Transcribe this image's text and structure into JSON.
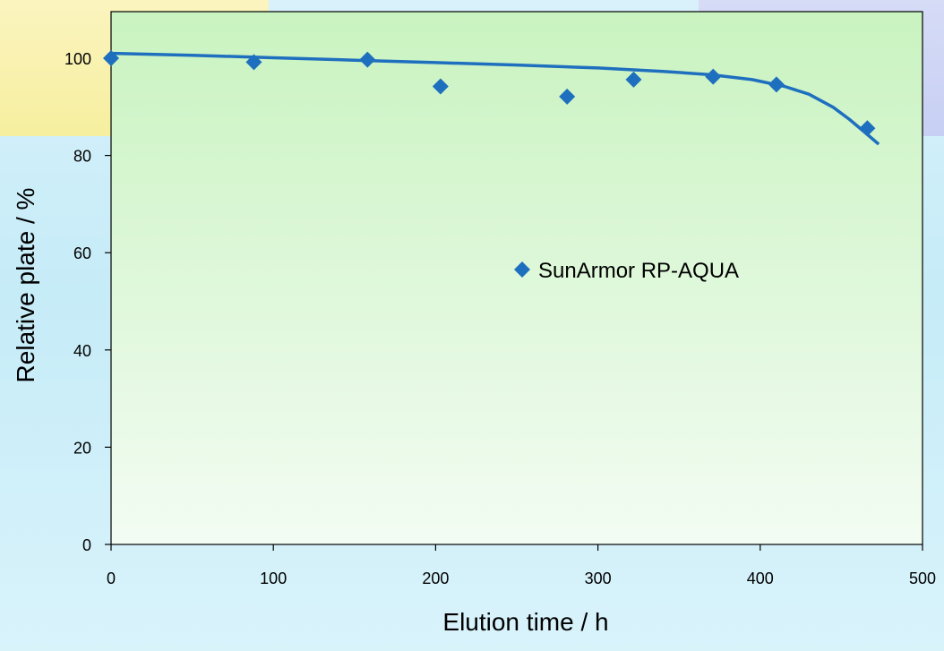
{
  "chart_data": {
    "type": "scatter",
    "title": "",
    "xlabel": "Elution time / h",
    "ylabel": "Relative plate / %",
    "xlim": [
      0,
      500
    ],
    "ylim": [
      0,
      100
    ],
    "x_ticks": [
      "0",
      "100",
      "200",
      "300",
      "400",
      "500"
    ],
    "y_ticks": [
      "0",
      "20",
      "40",
      "60",
      "80",
      "100"
    ],
    "grid": false,
    "legend_position": "center-right",
    "series": [
      {
        "name": "SunArmor RP-AQUA",
        "color": "#1f6fbf",
        "marker": "diamond",
        "x": [
          0,
          88,
          158,
          203,
          281,
          322,
          371,
          410,
          466
        ],
        "y": [
          100,
          99.2,
          99.7,
          94.2,
          92.1,
          95.6,
          96.2,
          94.6,
          85.6
        ]
      }
    ],
    "trendline": {
      "color": "#1f6fbf",
      "x": [
        0,
        50,
        100,
        150,
        200,
        250,
        300,
        340,
        370,
        395,
        415,
        430,
        445,
        455,
        465,
        473
      ],
      "y": [
        101,
        100.6,
        100.1,
        99.6,
        99.1,
        98.6,
        98.0,
        97.3,
        96.6,
        95.6,
        94.2,
        92.6,
        89.9,
        87.4,
        84.6,
        82.3
      ]
    },
    "plot_background": [
      "#c9f3c0",
      "#f3fcf3"
    ]
  }
}
